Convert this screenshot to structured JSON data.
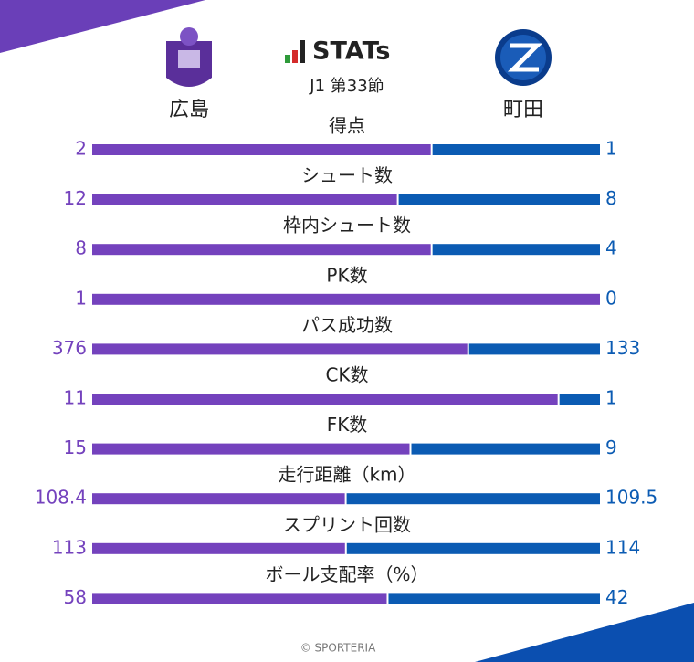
{
  "chart_data": {
    "type": "comparison_bar",
    "title": "STATs",
    "subtitle": "J1 第33節",
    "categories": [
      "得点",
      "シュート数",
      "枠内シュート数",
      "PK数",
      "パス成功数",
      "CK数",
      "FK数",
      "走行距離（km）",
      "スプリント回数",
      "ボール支配率（%）"
    ],
    "series": [
      {
        "name": "広島",
        "color": "#7442bd",
        "values": [
          2,
          12,
          8,
          1,
          376,
          11,
          15,
          108.4,
          113,
          58
        ]
      },
      {
        "name": "町田",
        "color": "#0b5bb3",
        "values": [
          1,
          8,
          4,
          0,
          133,
          1,
          9,
          109.5,
          114,
          42
        ]
      }
    ],
    "footer": "© SPORTERIA"
  }
}
